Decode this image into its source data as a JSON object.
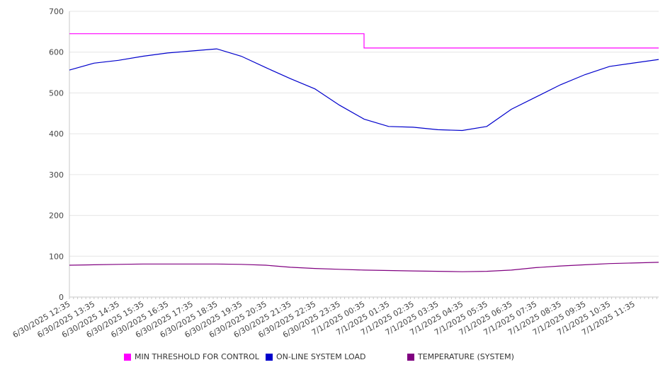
{
  "chart_data": {
    "type": "line",
    "title": "",
    "xlabel": "",
    "ylabel": "",
    "ylim": [
      0,
      700
    ],
    "yticks": [
      0,
      100,
      200,
      300,
      400,
      500,
      600,
      700
    ],
    "grid": true,
    "legend_position": "bottom",
    "categories": [
      "6/30/2025 12:35",
      "6/30/2025 13:35",
      "6/30/2025 14:35",
      "6/30/2025 15:35",
      "6/30/2025 16:35",
      "6/30/2025 17:35",
      "6/30/2025 18:35",
      "6/30/2025 19:35",
      "6/30/2025 20:35",
      "6/30/2025 21:35",
      "6/30/2025 22:35",
      "6/30/2025 23:35",
      "7/1/2025 00:35",
      "7/1/2025 01:35",
      "7/1/2025 02:35",
      "7/1/2025 03:35",
      "7/1/2025 04:35",
      "7/1/2025 05:35",
      "7/1/2025 06:35",
      "7/1/2025 07:35",
      "7/1/2025 08:35",
      "7/1/2025 09:35",
      "7/1/2025 10:35",
      "7/1/2025 11:35"
    ],
    "series": [
      {
        "name": "MIN THRESHOLD FOR CONTROL",
        "color": "#ff00ff",
        "values": [
          645,
          645,
          645,
          645,
          645,
          645,
          645,
          645,
          645,
          645,
          645,
          645,
          610,
          610,
          610,
          610,
          610,
          610,
          610,
          610,
          610,
          610,
          610,
          610
        ]
      },
      {
        "name": "ON-LINE SYSTEM LOAD",
        "color": "#0000cc",
        "values": [
          556,
          573,
          580,
          590,
          598,
          603,
          608,
          590,
          562,
          535,
          510,
          470,
          436,
          418,
          416,
          410,
          408,
          418,
          460,
          490,
          520,
          545,
          565,
          582
        ]
      },
      {
        "name": "TEMPERATURE (SYSTEM)",
        "color": "#800080",
        "values": [
          78,
          79,
          80,
          81,
          81,
          81,
          81,
          80,
          78,
          73,
          70,
          68,
          66,
          65,
          64,
          63,
          62,
          63,
          66,
          72,
          76,
          79,
          82,
          85
        ]
      }
    ]
  }
}
